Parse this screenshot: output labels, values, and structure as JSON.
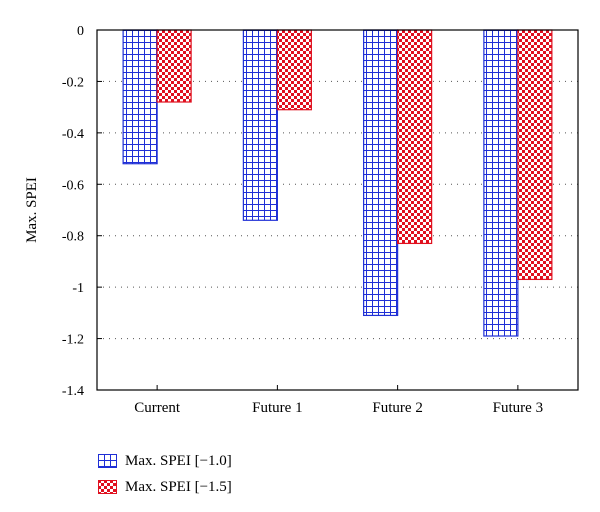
{
  "chart_data": {
    "type": "bar",
    "categories": [
      "Current",
      "Future 1",
      "Future 2",
      "Future 3"
    ],
    "series": [
      {
        "name": "Max. SPEI [−1.0]",
        "values": [
          -0.52,
          -0.74,
          -1.11,
          -1.19
        ],
        "color": "#1f2fd6",
        "pattern": "grid"
      },
      {
        "name": "Max. SPEI [−1.5]",
        "values": [
          -0.28,
          -0.31,
          -0.83,
          -0.97
        ],
        "color": "#e0101f",
        "pattern": "checker"
      }
    ],
    "ylabel": "Max. SPEI",
    "ylim": [
      -1.4,
      0
    ],
    "yticks": [
      0,
      -0.2,
      -0.4,
      -0.6,
      -0.8,
      -1,
      -1.2,
      -1.4
    ],
    "ytick_labels": [
      "0",
      "-0.2",
      "-0.4",
      "-0.6",
      "-0.8",
      "-1",
      "-1.2",
      "-1.4"
    ],
    "grid": "dotted horizontal",
    "legend_position": "bottom-left"
  }
}
